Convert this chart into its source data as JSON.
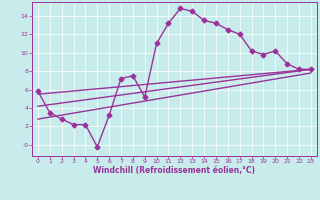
{
  "xlabel": "Windchill (Refroidissement éolien,°C)",
  "ylabel": "",
  "bg_color": "#c8ecec",
  "line_color": "#993399",
  "xlim": [
    -0.5,
    23.5
  ],
  "ylim": [
    -1.2,
    15.5
  ],
  "xticks": [
    0,
    1,
    2,
    3,
    4,
    5,
    6,
    7,
    8,
    9,
    10,
    11,
    12,
    13,
    14,
    15,
    16,
    17,
    18,
    19,
    20,
    21,
    22,
    23
  ],
  "yticks": [
    0,
    2,
    4,
    6,
    8,
    10,
    12,
    14
  ],
  "ytick_labels": [
    "-0",
    "2",
    "4",
    "6",
    "8",
    "10",
    "12",
    "14"
  ],
  "main_x": [
    0,
    1,
    2,
    3,
    4,
    5,
    6,
    7,
    8,
    9,
    10,
    11,
    12,
    13,
    14,
    15,
    16,
    17,
    18,
    19,
    20,
    21,
    22,
    23
  ],
  "main_y": [
    5.8,
    3.5,
    2.8,
    2.2,
    2.2,
    -0.2,
    3.2,
    7.2,
    7.5,
    5.2,
    11.0,
    13.2,
    14.8,
    14.5,
    13.5,
    13.2,
    12.5,
    12.0,
    10.2,
    9.8,
    10.2,
    8.8,
    8.2,
    8.2
  ],
  "line2_x": [
    0,
    23
  ],
  "line2_y": [
    5.5,
    8.2
  ],
  "line3_x": [
    0,
    23
  ],
  "line3_y": [
    4.2,
    8.2
  ],
  "line4_x": [
    0,
    23
  ],
  "line4_y": [
    2.8,
    7.8
  ],
  "marker": "D",
  "markersize": 2.5,
  "linewidth": 1.0
}
